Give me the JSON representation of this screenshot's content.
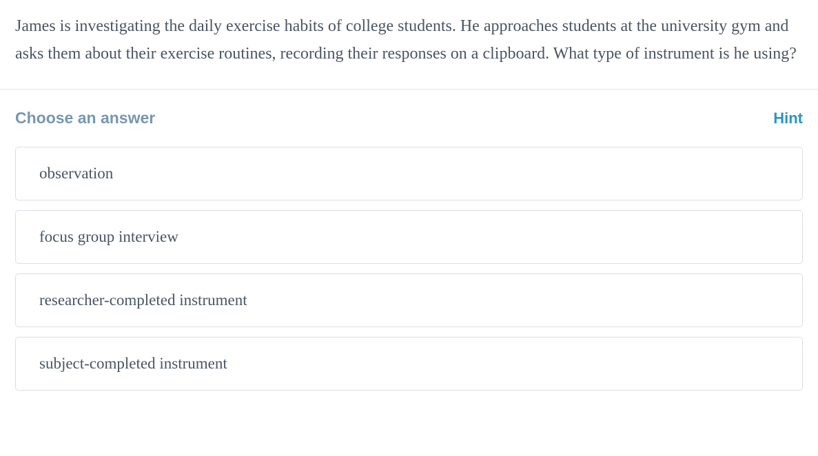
{
  "question": {
    "text": "James is investigating the daily exercise habits of college students. He approaches students at the university gym and asks them about their exercise routines, recording their responses on a clipboard. What type of instrument is he using?"
  },
  "answer_section": {
    "choose_label": "Choose an answer",
    "hint_label": "Hint",
    "options": [
      "observation",
      "focus group interview",
      "researcher-completed instrument",
      "subject-completed instrument"
    ]
  },
  "colors": {
    "question_text": "#4a5562",
    "choose_label": "#7896b0",
    "hint_link": "#2996c2",
    "option_border": "#d9dfe4",
    "divider": "#e3e8ec",
    "background": "#ffffff"
  },
  "typography": {
    "question_fontsize": 24,
    "label_fontsize": 23,
    "option_fontsize": 23,
    "serif_family": "Georgia",
    "sans_family": "Segoe UI"
  }
}
